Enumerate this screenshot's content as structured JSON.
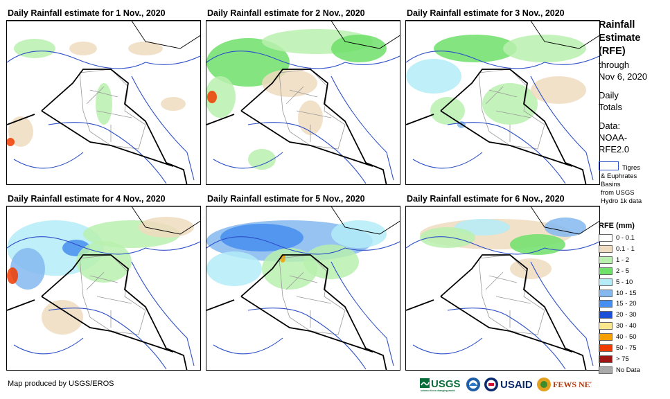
{
  "panels": [
    {
      "title": "Daily Rainfall estimate for 1 Nov., 2020"
    },
    {
      "title": "Daily Rainfall estimate for 2 Nov., 2020"
    },
    {
      "title": "Daily Rainfall estimate for 3 Nov., 2020"
    },
    {
      "title": "Daily Rainfall estimate for 4 Nov., 2020"
    },
    {
      "title": "Daily Rainfall estimate for 5 Nov., 2020"
    },
    {
      "title": "Daily Rainfall estimate for 6 Nov., 2020"
    }
  ],
  "sidebar": {
    "title_lines": [
      "Rainfall",
      "Estimate",
      "(RFE)"
    ],
    "through_lines": [
      "through",
      "Nov 6, 2020"
    ],
    "daily_lines": [
      "Daily",
      "Totals"
    ],
    "data_lines": [
      "Data:",
      "NOAA-",
      "RFE2.0"
    ],
    "basin_note": [
      "Tigres",
      "& Euphrates",
      "Basins",
      "from USGS",
      "Hydro 1k data"
    ],
    "legend_title": "RFE (mm)",
    "legend": [
      {
        "label": "0 - 0.1",
        "color": "#ffffff"
      },
      {
        "label": "0.1 - 1",
        "color": "#f0dcc0"
      },
      {
        "label": "1 - 2",
        "color": "#b9f0ae"
      },
      {
        "label": "2 - 5",
        "color": "#6fe06a"
      },
      {
        "label": "5 - 10",
        "color": "#b4ecf8"
      },
      {
        "label": "10 - 15",
        "color": "#84b9f0"
      },
      {
        "label": "15 - 20",
        "color": "#468ef0"
      },
      {
        "label": "20 - 30",
        "color": "#1c4fd8"
      },
      {
        "label": "30 - 40",
        "color": "#fae68c"
      },
      {
        "label": "40 - 50",
        "color": "#f5a000"
      },
      {
        "label": "50 - 75",
        "color": "#f03c00"
      },
      {
        "label": "> 75",
        "color": "#a01414"
      },
      {
        "label": "No Data",
        "color": "#aaaaaa"
      }
    ]
  },
  "footer": {
    "credit": "Map produced by USGS/EROS"
  },
  "logos": {
    "usgs": "USGS",
    "usgs_tagline": "science for a changing world",
    "usaid": "USAID",
    "fewsnet": "FEWS NET"
  },
  "colors": {
    "border": "#000000",
    "rivers": "#2d4fc8",
    "provinces": "#999999"
  }
}
